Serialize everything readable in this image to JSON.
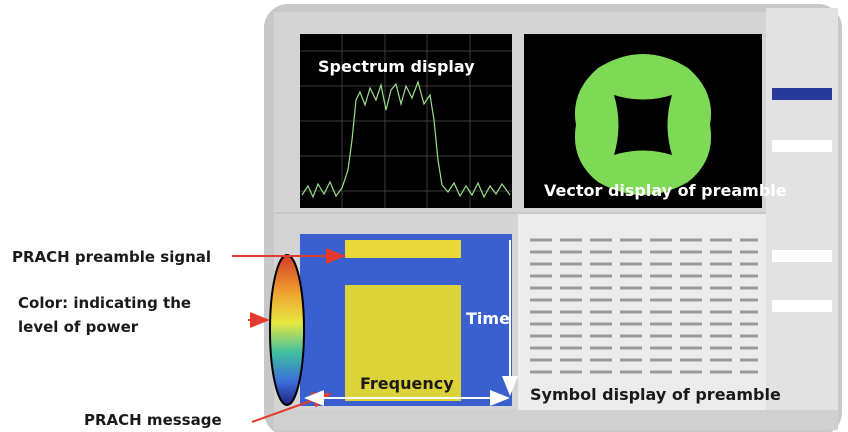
{
  "annotations": {
    "spectrum_display": "Spectrum display",
    "vector_display": "Vector display of preamble",
    "prach_preamble_signal": "PRACH preamble signal",
    "color_line1": "Color: indicating the",
    "color_line2": "level of power",
    "time": "Time",
    "frequency": "Frequency",
    "symbol_display": "Symbol display of preamble",
    "prach_message": "PRACH message"
  }
}
